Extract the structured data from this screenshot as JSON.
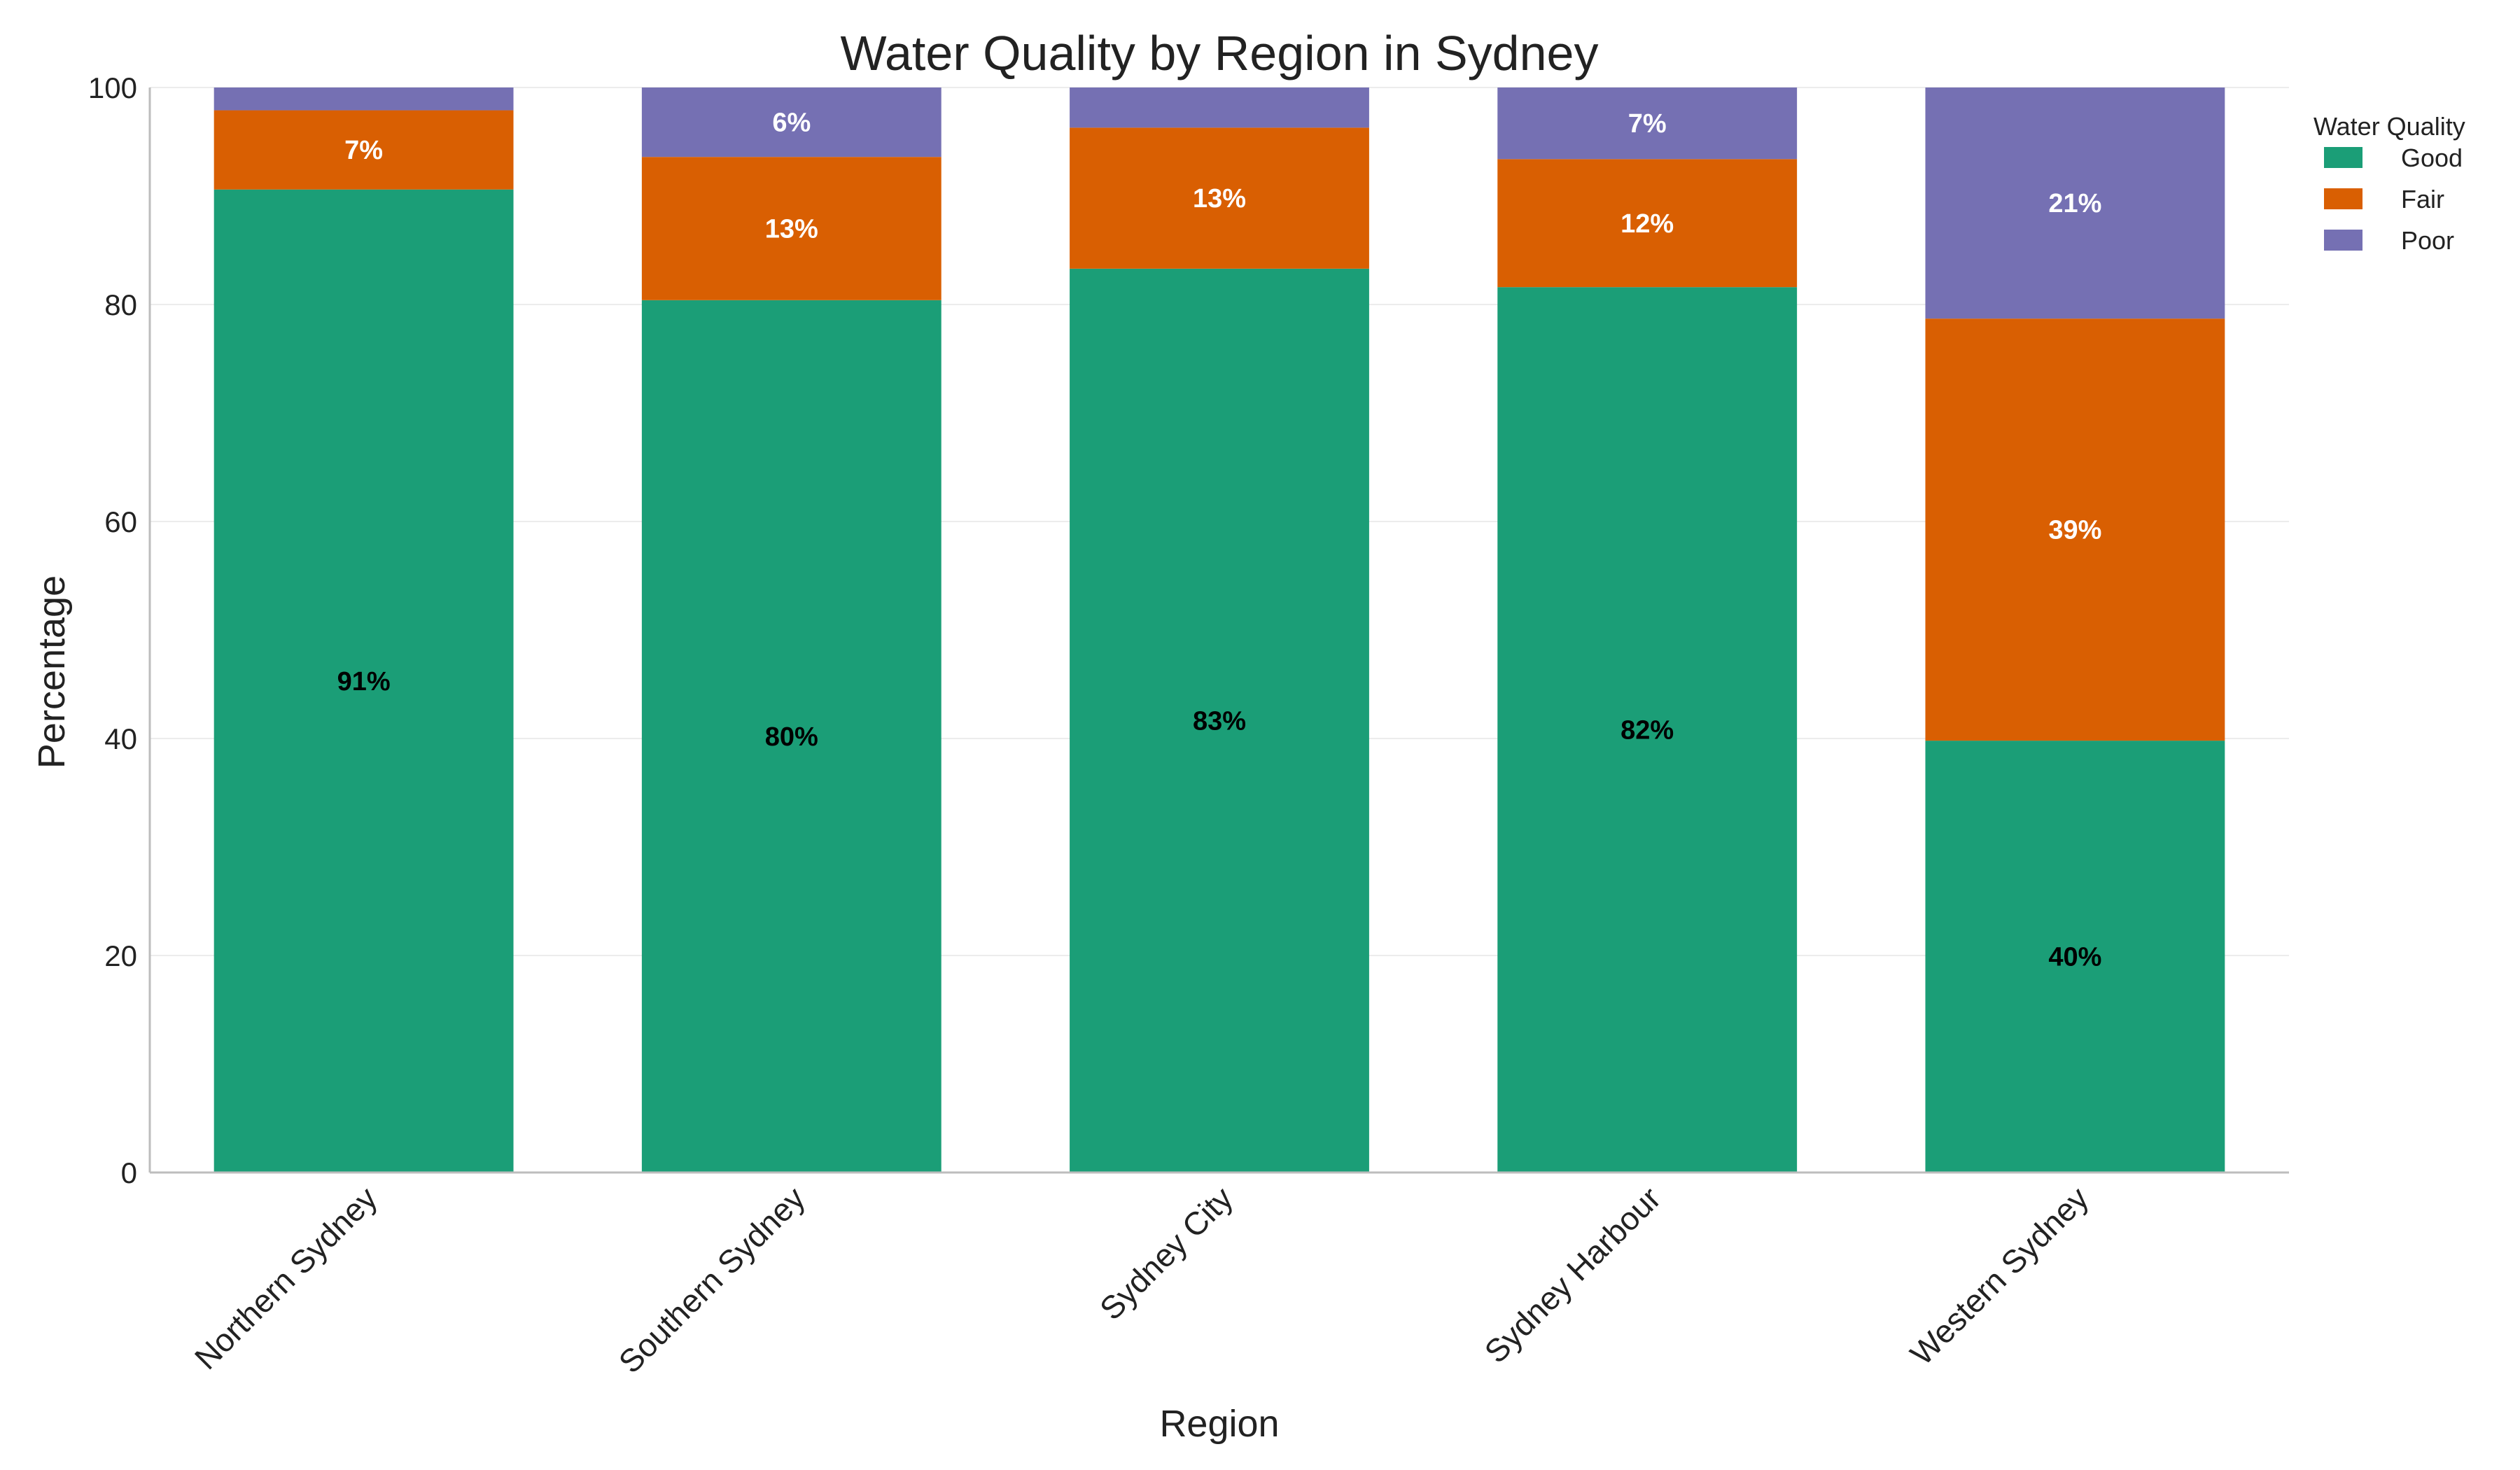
{
  "chart_data": {
    "type": "bar",
    "stacked": true,
    "title": "Water Quality by Region in Sydney",
    "xlabel": "Region",
    "ylabel": "Percentage",
    "ylim": [
      0,
      100
    ],
    "yticks": [
      0,
      20,
      40,
      60,
      80,
      100
    ],
    "grid": true,
    "legend": {
      "title": "Water Quality",
      "placement": "top-right"
    },
    "categories": [
      "Northern Sydney",
      "Southern Sydney",
      "Sydney City",
      "Sydney Harbour",
      "Western Sydney"
    ],
    "series": [
      {
        "name": "Good",
        "color": "#1b9e77",
        "label_color": "#000000",
        "values": [
          90.6,
          80.4,
          83.3,
          81.6,
          39.8
        ],
        "labels": [
          "91%",
          "80%",
          "83%",
          "82%",
          "40%"
        ]
      },
      {
        "name": "Fair",
        "color": "#d95f02",
        "label_color": "#ffffff",
        "values": [
          7.3,
          13.2,
          13.0,
          11.8,
          38.9
        ],
        "labels": [
          "7%",
          "13%",
          "13%",
          "12%",
          "39%"
        ]
      },
      {
        "name": "Poor",
        "color": "#7570b3",
        "label_color": "#ffffff",
        "values": [
          2.1,
          6.4,
          3.7,
          6.6,
          21.3
        ],
        "labels": [
          "",
          "6%",
          "",
          "7%",
          "21%"
        ]
      }
    ]
  }
}
